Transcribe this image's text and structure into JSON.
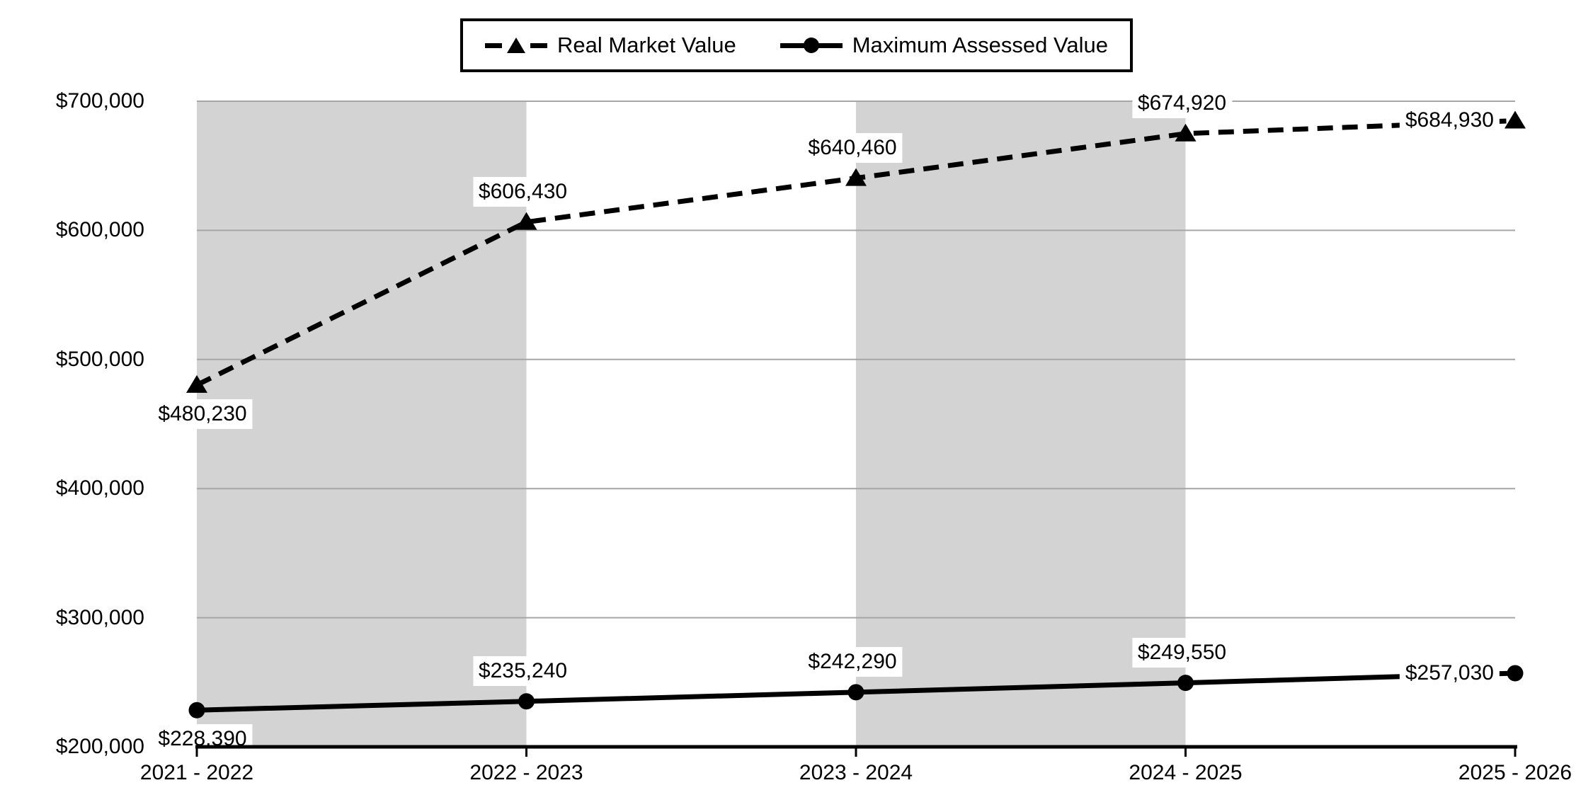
{
  "legend": {
    "items": [
      {
        "label": "Real Market Value",
        "marker": "dashed-line-triangle"
      },
      {
        "label": "Maximum Assessed Value",
        "marker": "solid-line-circle"
      }
    ]
  },
  "chart_data": {
    "type": "line",
    "title": "",
    "xlabel": "",
    "ylabel": "",
    "categories": [
      "2021 - 2022",
      "2022 - 2023",
      "2023 - 2024",
      "2024 - 2025",
      "2025 - 2026"
    ],
    "series": [
      {
        "name": "Real Market Value",
        "style": "dashed",
        "marker": "triangle",
        "values": [
          480230,
          606430,
          640460,
          674920,
          684930
        ],
        "point_labels": [
          "$480,230",
          "$606,430",
          "$640,460",
          "$674,920",
          "$684,930"
        ],
        "label_placements": [
          "below",
          "above",
          "above",
          "above",
          "left"
        ]
      },
      {
        "name": "Maximum Assessed Value",
        "style": "solid",
        "marker": "circle",
        "values": [
          228390,
          235240,
          242290,
          249550,
          257030
        ],
        "point_labels": [
          "$228,390",
          "$235,240",
          "$242,290",
          "$249,550",
          "$257,030"
        ],
        "label_placements": [
          "below",
          "above",
          "above",
          "above",
          "left"
        ]
      }
    ],
    "ylim": [
      200000,
      700000
    ],
    "ytick_step": 100000,
    "ytick_labels": [
      "$200,000",
      "$300,000",
      "$400,000",
      "$500,000",
      "$600,000",
      "$700,000"
    ],
    "shaded_band_pairs": [
      [
        0,
        1
      ],
      [
        2,
        3
      ]
    ],
    "grid": "horizontal",
    "legend_position": "top-center",
    "colors": {
      "series": "#000000",
      "band": "#d3d3d3",
      "gridline": "#a6a6a6",
      "axis": "#000000",
      "label_bg": "#ffffff"
    }
  }
}
